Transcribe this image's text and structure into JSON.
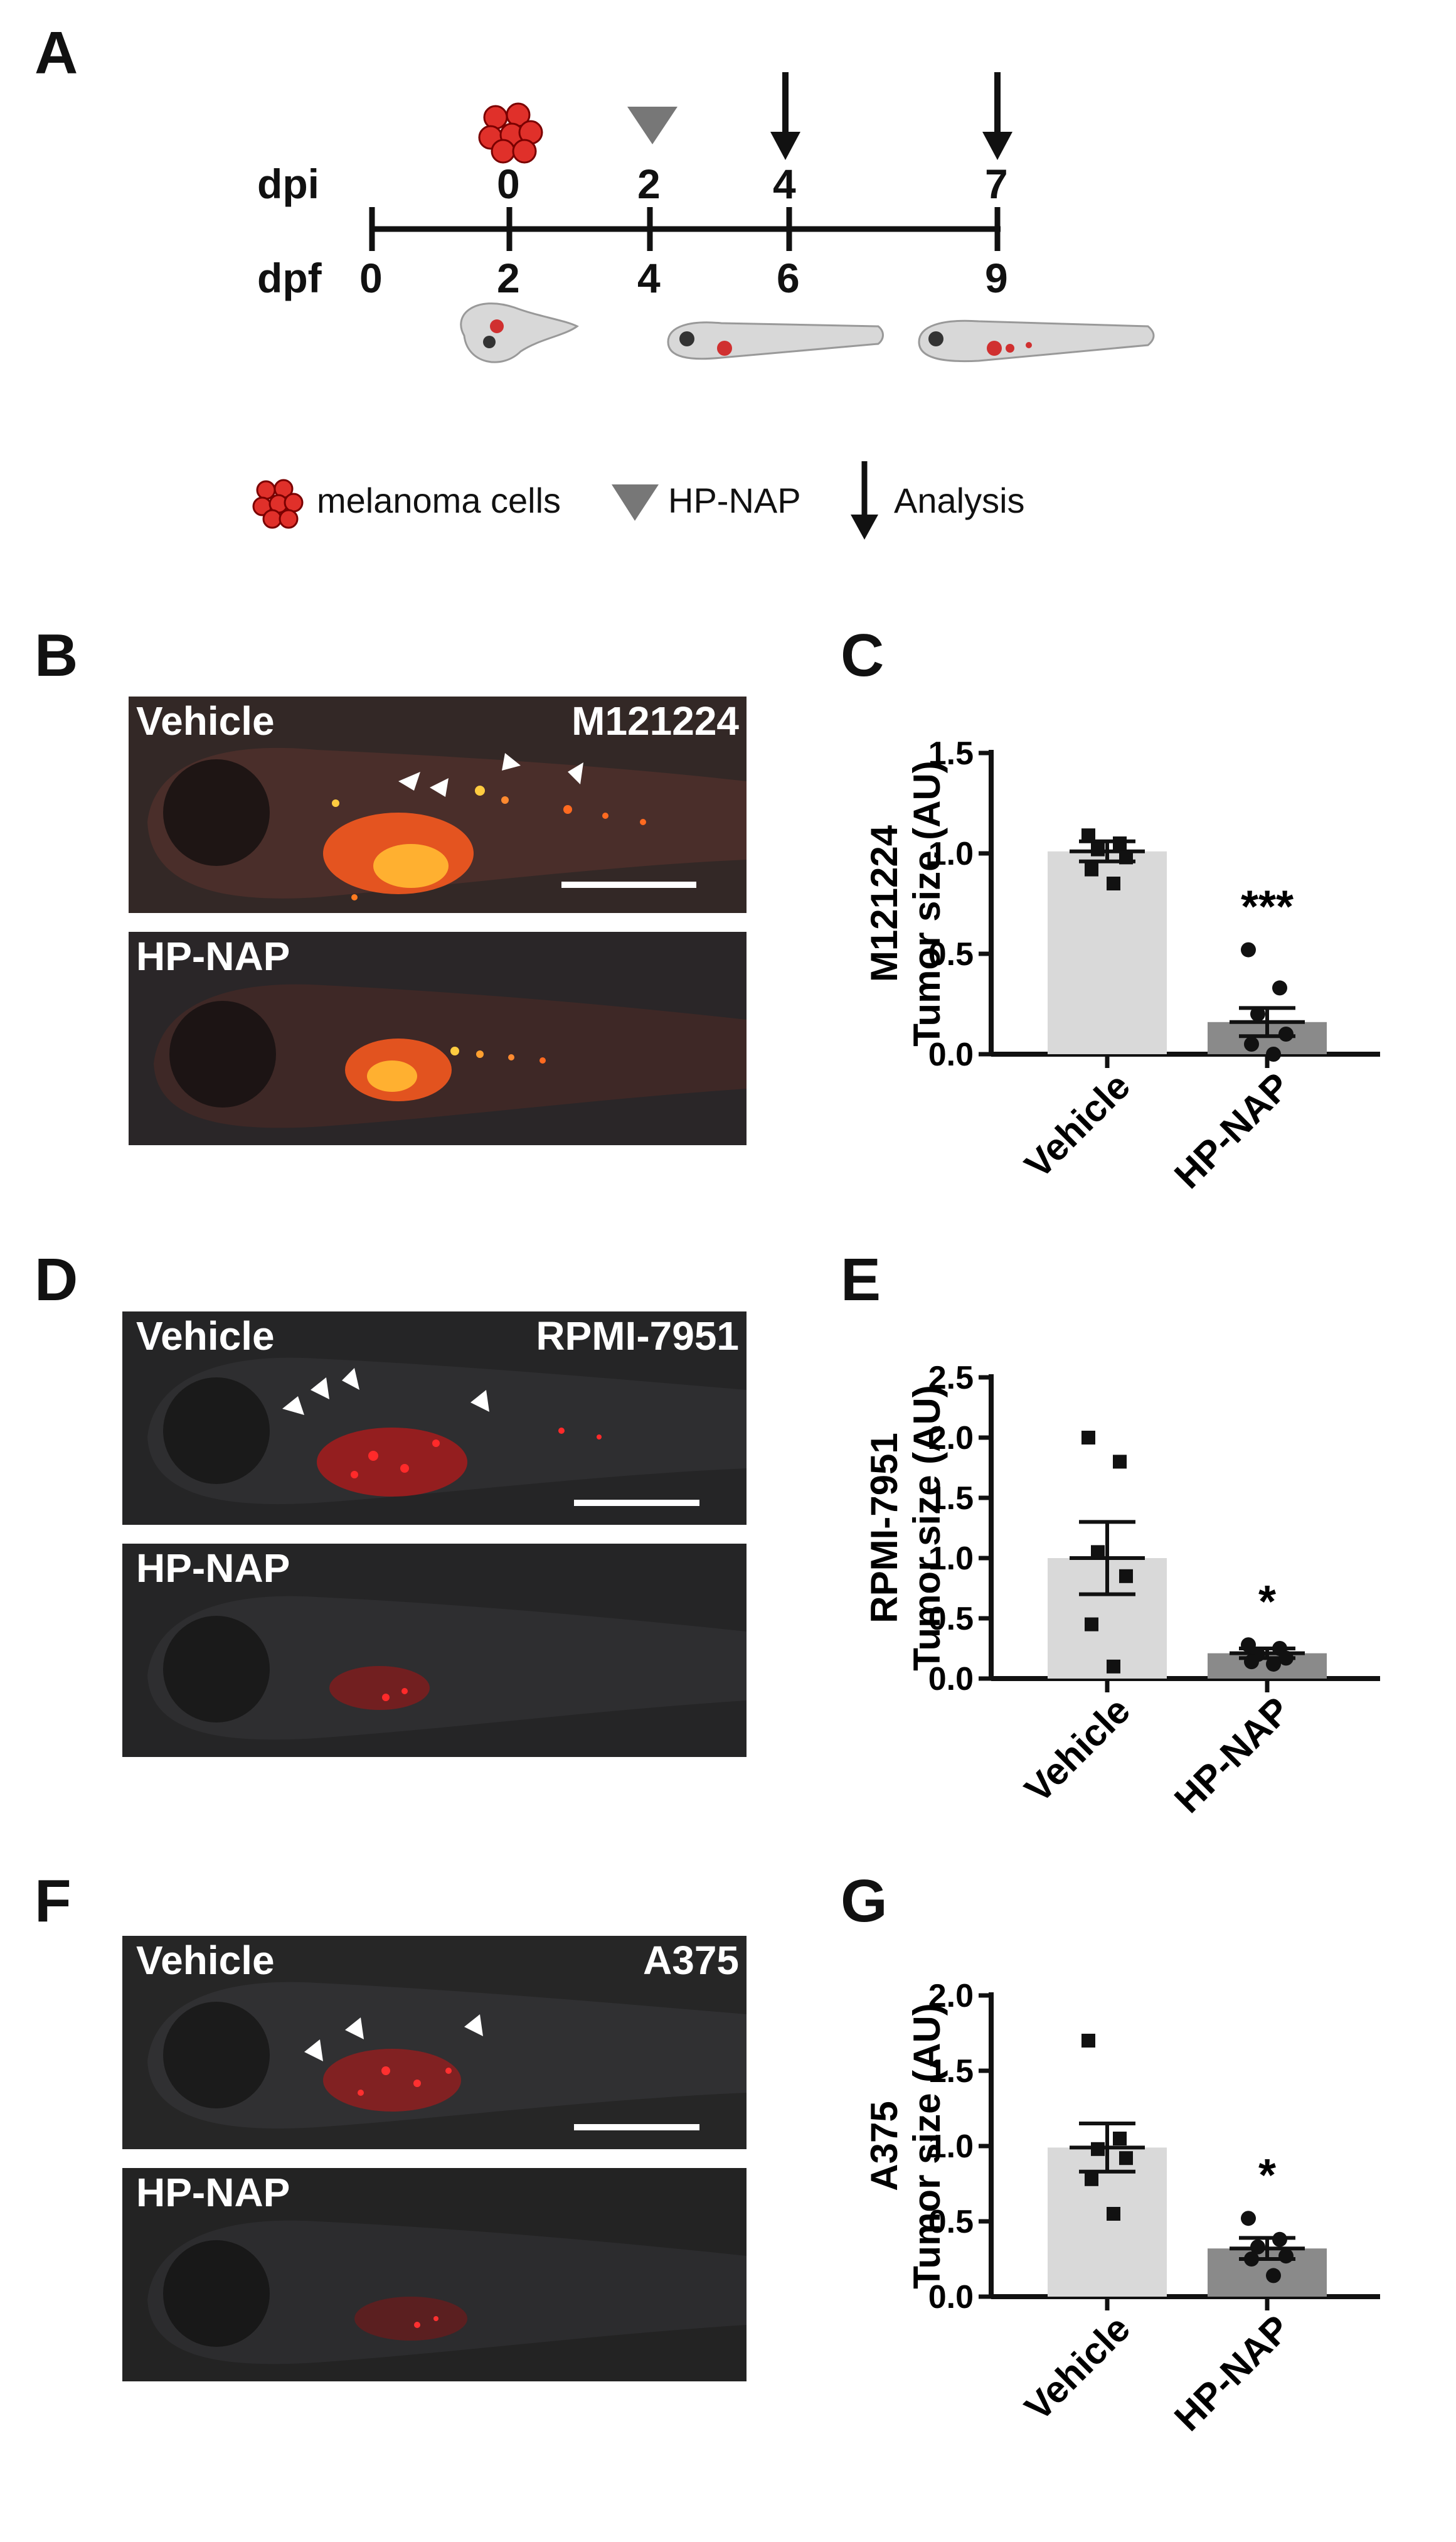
{
  "panels": {
    "A": "A",
    "B": "B",
    "C": "C",
    "D": "D",
    "E": "E",
    "F": "F",
    "G": "G"
  },
  "timeline": {
    "dpi_label": "dpi",
    "dpf_label": "dpf",
    "dpi_ticks": [
      "0",
      "2",
      "4",
      "7"
    ],
    "dpf_ticks": [
      "0",
      "2",
      "4",
      "6",
      "9"
    ]
  },
  "legend": {
    "melanoma": "melanoma cells",
    "hpnap": "HP-NAP",
    "analysis": "Analysis"
  },
  "micrographs": [
    {
      "panel": "B",
      "top_label": "Vehicle",
      "cell_line": "M121224",
      "bottom_label": "HP-NAP"
    },
    {
      "panel": "D",
      "top_label": "Vehicle",
      "cell_line": "RPMI-7951",
      "bottom_label": "HP-NAP"
    },
    {
      "panel": "F",
      "top_label": "Vehicle",
      "cell_line": "A375",
      "bottom_label": "HP-NAP"
    }
  ],
  "colors": {
    "vehicle_bar": "#d9d9d9",
    "hpnap_bar": "#8a8a8a",
    "fluorescence": "#ff3b1a",
    "axis": "#111111"
  },
  "chart_data": [
    {
      "panel": "C",
      "type": "bar",
      "categories": [
        "Vehicle",
        "HP-NAP"
      ],
      "values": [
        1.01,
        0.16
      ],
      "errors": [
        0.05,
        0.07
      ],
      "points": [
        [
          1.09,
          1.05,
          1.02,
          0.98,
          0.92,
          0.85
        ],
        [
          0.52,
          0.33,
          0.2,
          0.1,
          0.05,
          0.0
        ]
      ],
      "point_markers": [
        "square",
        "circle"
      ],
      "ylabel": "Tumor size (AU)",
      "ylabel2": "M121224",
      "ylim": [
        0,
        1.5
      ],
      "yticks": [
        "0.0",
        "0.5",
        "1.0",
        "1.5"
      ],
      "significance": "***"
    },
    {
      "panel": "E",
      "type": "bar",
      "categories": [
        "Vehicle",
        "HP-NAP"
      ],
      "values": [
        1.0,
        0.21
      ],
      "errors": [
        0.3,
        0.04
      ],
      "points": [
        [
          2.0,
          1.8,
          1.05,
          0.85,
          0.45,
          0.1
        ],
        [
          0.28,
          0.25,
          0.2,
          0.17,
          0.14,
          0.12
        ]
      ],
      "point_markers": [
        "square",
        "circle"
      ],
      "ylabel": "Tumor size (AU)",
      "ylabel2": "RPMI-7951",
      "ylim": [
        0,
        2.5
      ],
      "yticks": [
        "0.0",
        "0.5",
        "1.0",
        "1.5",
        "2.0",
        "2.5"
      ],
      "significance": "*"
    },
    {
      "panel": "G",
      "type": "bar",
      "categories": [
        "Vehicle",
        "HP-NAP"
      ],
      "values": [
        0.99,
        0.32
      ],
      "errors": [
        0.16,
        0.07
      ],
      "points": [
        [
          1.7,
          1.05,
          0.98,
          0.92,
          0.78,
          0.55
        ],
        [
          0.52,
          0.38,
          0.33,
          0.27,
          0.25,
          0.14
        ]
      ],
      "point_markers": [
        "square",
        "circle"
      ],
      "ylabel": "Tumor size (AU)",
      "ylabel2": "A375",
      "ylim": [
        0,
        2.0
      ],
      "yticks": [
        "0.0",
        "0.5",
        "1.0",
        "1.5",
        "2.0"
      ],
      "significance": "*"
    }
  ]
}
